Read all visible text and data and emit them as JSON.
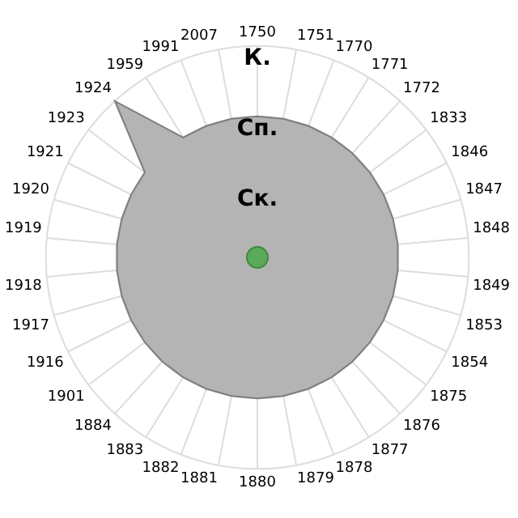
{
  "chart_data": {
    "type": "radar",
    "categories": [
      "1750",
      "1751",
      "1770",
      "1771",
      "1772",
      "1833",
      "1846",
      "1847",
      "1848",
      "1849",
      "1853",
      "1854",
      "1875",
      "1876",
      "1877",
      "1878",
      "1879",
      "1880",
      "1881",
      "1882",
      "1883",
      "1884",
      "1901",
      "1916",
      "1917",
      "1918",
      "1919",
      "1920",
      "1921",
      "1923",
      "1924",
      "1959",
      "1991",
      "2007"
    ],
    "series": [
      {
        "color": "#b4b4b4",
        "values": [
          2,
          2,
          2,
          2,
          2,
          2,
          2,
          2,
          2,
          2,
          2,
          2,
          2,
          2,
          2,
          2,
          2,
          2,
          2,
          2,
          2,
          2,
          2,
          2,
          2,
          2,
          2,
          2,
          2,
          2,
          3,
          2,
          2,
          2
        ]
      }
    ],
    "ylim": [
      0,
      3
    ],
    "yticks": [
      {
        "value": 1,
        "label": "Ск."
      },
      {
        "value": 2,
        "label": "Сп."
      },
      {
        "value": 3,
        "label": "К."
      }
    ],
    "grid": true,
    "legend": false,
    "marker": "none"
  }
}
